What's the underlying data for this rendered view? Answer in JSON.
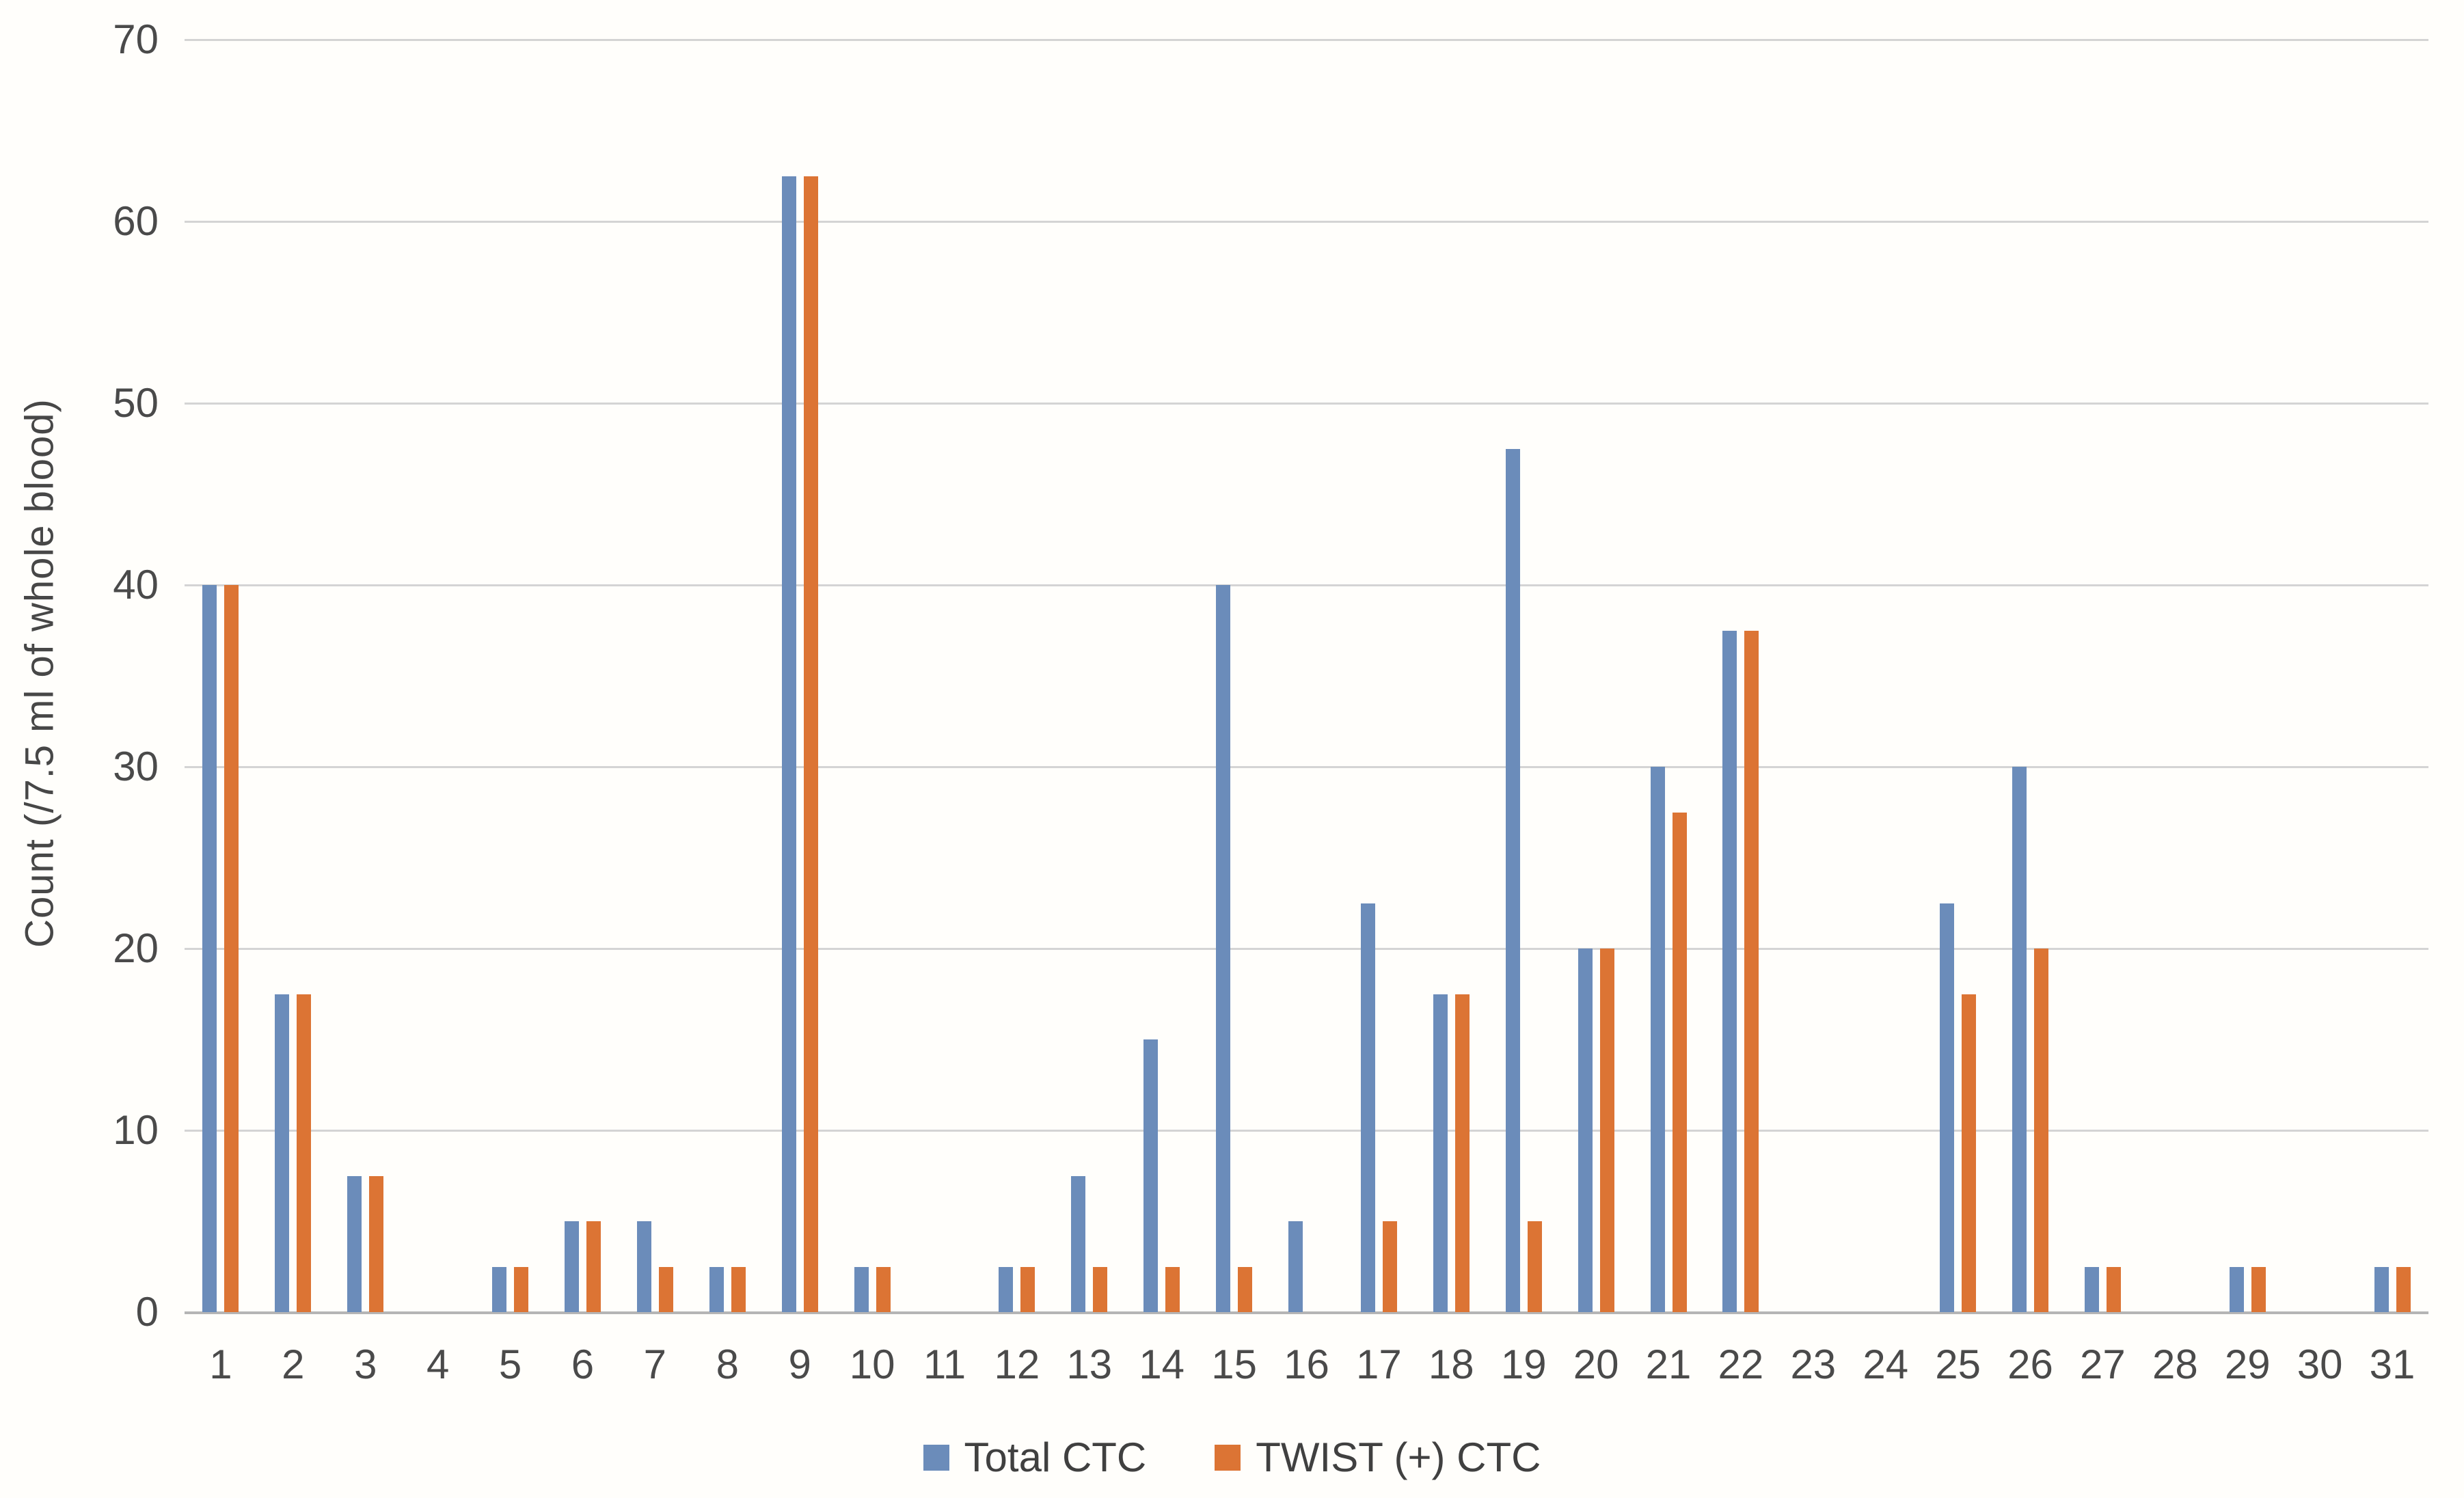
{
  "chart_data": {
    "type": "bar",
    "title": "",
    "xlabel": "",
    "ylabel": "Count (/7.5 ml of whole blood)",
    "categories": [
      "1",
      "2",
      "3",
      "4",
      "5",
      "6",
      "7",
      "8",
      "9",
      "10",
      "11",
      "12",
      "13",
      "14",
      "15",
      "16",
      "17",
      "18",
      "19",
      "20",
      "21",
      "22",
      "23",
      "24",
      "25",
      "26",
      "27",
      "28",
      "29",
      "30",
      "31"
    ],
    "series": [
      {
        "name": "Total CTC",
        "color": "#6b8cba",
        "values": [
          40,
          17.5,
          7.5,
          0,
          2.5,
          5,
          5,
          2.5,
          62.5,
          2.5,
          0,
          2.5,
          7.5,
          15,
          40,
          5,
          22.5,
          17.5,
          47.5,
          20,
          30,
          37.5,
          0,
          0,
          22.5,
          30,
          2.5,
          0,
          2.5,
          0,
          2.5
        ]
      },
      {
        "name": "TWIST (+) CTC",
        "color": "#dc7434",
        "values": [
          40,
          17.5,
          7.5,
          0,
          2.5,
          5,
          2.5,
          2.5,
          62.5,
          2.5,
          0,
          2.5,
          2.5,
          2.5,
          2.5,
          0,
          5,
          17.5,
          5,
          20,
          27.5,
          37.5,
          0,
          0,
          17.5,
          20,
          2.5,
          0,
          2.5,
          0,
          2.5
        ]
      }
    ],
    "ylim": [
      0,
      70
    ],
    "yticks": [
      0,
      10,
      20,
      30,
      40,
      50,
      60,
      70
    ],
    "grid": true,
    "legend_position": "bottom-center",
    "colors": {
      "gridline": "#d4d4d4",
      "axis_line": "#b5b5b5",
      "tick_text": "#4a4a4a",
      "background": "#fffefb"
    }
  }
}
